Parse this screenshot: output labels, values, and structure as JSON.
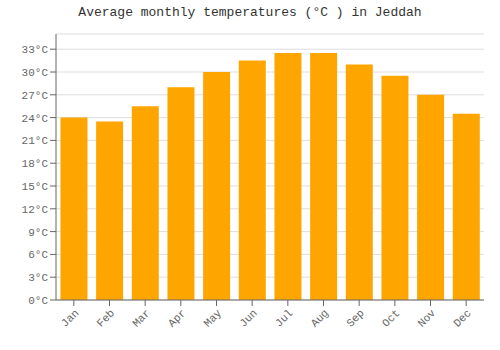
{
  "chart_data": {
    "type": "bar",
    "title": "Average monthly temperatures (°C ) in Jeddah",
    "categories": [
      "Jan",
      "Feb",
      "Mar",
      "Apr",
      "May",
      "Jun",
      "Jul",
      "Aug",
      "Sep",
      "Oct",
      "Nov",
      "Dec"
    ],
    "values": [
      24,
      23.5,
      25.5,
      28,
      30,
      31.5,
      32.5,
      32.5,
      31,
      29.5,
      27,
      24.5
    ],
    "color": "#FFA500",
    "ylim": [
      0,
      35
    ],
    "yticks": [
      {
        "value": 0,
        "label": "0°C"
      },
      {
        "value": 3,
        "label": "3°C"
      },
      {
        "value": 6,
        "label": "6°C"
      },
      {
        "value": 9,
        "label": "9°C"
      },
      {
        "value": 12,
        "label": "12°C"
      },
      {
        "value": 15,
        "label": "15°C"
      },
      {
        "value": 18,
        "label": "18°C"
      },
      {
        "value": 21,
        "label": "21°C"
      },
      {
        "value": 24,
        "label": "24°C"
      },
      {
        "value": 27,
        "label": "27°C"
      },
      {
        "value": 30,
        "label": "30°C"
      },
      {
        "value": 33,
        "label": "33°C"
      }
    ],
    "grid": true
  }
}
